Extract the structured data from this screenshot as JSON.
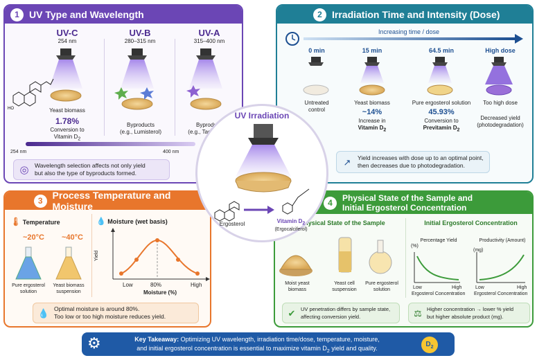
{
  "colors": {
    "purple": "#6b46b5",
    "teal": "#1f7f96",
    "orange": "#e8762c",
    "green": "#3c9b3a",
    "navy": "#1d4f91",
    "takeaway": "#1f5aa6"
  },
  "p1": {
    "num": "1",
    "title": "UV Type and Wavelength",
    "bands": [
      {
        "name": "UV-C",
        "range": "254 nm",
        "label": "Yeast biomass",
        "value": "1.78%",
        "desc1": "Conversion to",
        "desc2": "Vitamin D",
        "sub": "2"
      },
      {
        "name": "UV-B",
        "range": "280–315 nm",
        "label": "Byproducts",
        "desc": "(e.g., Lumisterol)"
      },
      {
        "name": "UV-A",
        "range": "315–400 nm",
        "label": "Byproducts",
        "desc": "(e.g., Tachysterol)"
      }
    ],
    "axis_left": "254 nm",
    "axis_right": "400 nm",
    "note1": "Wavelength selection affects not only yield",
    "note2": "but also the type of byproducts formed."
  },
  "p2": {
    "num": "2",
    "title": "Irradiation Time and Intensity (Dose)",
    "arrow": "Increasing time / dose",
    "steps": [
      {
        "time": "0 min",
        "l1": "Untreated",
        "l2": "control",
        "v": "",
        "l3": "",
        "l4": ""
      },
      {
        "time": "15 min",
        "l1": "Yeast biomass",
        "v": "~14%",
        "l2": "Increase in",
        "l3": "Vitamin D",
        "sub": "2"
      },
      {
        "time": "64.5 min",
        "l1": "Pure ergosterol solution",
        "v": "45.93%",
        "l2": "Conversion to",
        "l3": "Previtamin D",
        "sub": "2"
      },
      {
        "time": "High dose",
        "l1": "Too high dose",
        "v": "",
        "l2": "Decreased yield",
        "l3": "(photodegradation)"
      }
    ],
    "note1": "Yield increases with dose up to an optimal point,",
    "note2": "then decreases due to photodegradation."
  },
  "center": {
    "title": "UV Irradiation",
    "left": "Ergosterol",
    "right": "Vitamin D",
    "sub": "2",
    "right2": "(Ergocalciferol)"
  },
  "p3": {
    "num": "3",
    "title": "Process Temperature and Moisture",
    "temp_title": "Temperature",
    "moist_title": "Moisture (wet basis)",
    "t1": "~20°C",
    "t2": "~40°C",
    "f1a": "Pure ergosterol",
    "f1b": "solution",
    "f2a": "Yeast biomass",
    "f2b": "suspension",
    "ylabel": "Yield",
    "xlabel": "Moisture (%)",
    "ticks": [
      "Low",
      "80%",
      "High"
    ],
    "note1": "Optimal moisture is around 80%.",
    "note2": "Too low or too high moisture reduces yield."
  },
  "p4": {
    "num": "4",
    "title1": "Physical State of the Sample and",
    "title2": "Initial Ergosterol Concentration",
    "left_title": "Physical State of the Sample",
    "right_title": "Initial Ergosterol Concentration",
    "s1a": "Moist yeast",
    "s1b": "biomass",
    "s2a": "Yeast cell",
    "s2b": "suspension",
    "s3a": "Pure ergosterol",
    "s3b": "solution",
    "g1_title": "Percentage Yield",
    "g1_unit": "(%)",
    "g2_title": "Productivity (Amount)",
    "g2_unit": "(mg)",
    "low": "Low",
    "high": "High",
    "xcap": "Ergosterol Concentration",
    "note_a1": "UV penetration differs by sample state,",
    "note_a2": "affecting conversion yield.",
    "note_b1": "Higher concentration → lower % yield",
    "note_b2": "but higher absolute product (mg)."
  },
  "takeaway": {
    "lead": "Key Takeaway:",
    "l1": " Optimizing UV wavelength, irradiation time/dose, temperature, moisture,",
    "l2a": "and initial ergosterol concentration is essential to maximize vitamin D",
    "sub": "2",
    "l2b": " yield and quality.",
    "sun": "D",
    "sunsub": "2"
  }
}
